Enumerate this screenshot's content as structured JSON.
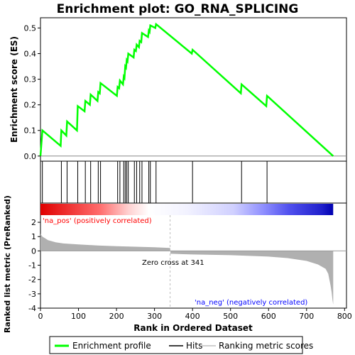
{
  "title": "Enrichment plot: GO_RNA_SPLICING",
  "colors": {
    "es_line": "#00ff00",
    "hits": "#000000",
    "metric_fill": "#b0b0b0",
    "pos_label": "#ff0000",
    "neg_label": "#0000ff",
    "zero_cross_line": "#bbbbbb"
  },
  "chart_data": [
    {
      "panel": "enrichment",
      "type": "line",
      "ylabel": "Enrichment score (ES)",
      "ylim": [
        -0.02,
        0.54
      ],
      "yticks": [
        0.0,
        0.1,
        0.2,
        0.3,
        0.4,
        0.5
      ],
      "ytick_labels": [
        "0.0",
        "0.1",
        "0.2",
        "0.3",
        "0.4",
        "0.5"
      ],
      "xlim": [
        0,
        805
      ],
      "series": [
        {
          "name": "Enrichment profile",
          "x": [
            0,
            5,
            53,
            55,
            68,
            70,
            96,
            98,
            116,
            118,
            130,
            132,
            150,
            152,
            156,
            158,
            201,
            203,
            207,
            209,
            217,
            219,
            221,
            223,
            225,
            227,
            229,
            231,
            245,
            247,
            251,
            253,
            259,
            261,
            265,
            267,
            283,
            285,
            287,
            289,
            302,
            304,
            398,
            400,
            527,
            529,
            594,
            596,
            770
          ],
          "y": [
            0.0,
            0.1,
            0.04,
            0.1,
            0.08,
            0.135,
            0.1,
            0.195,
            0.175,
            0.215,
            0.2,
            0.24,
            0.215,
            0.25,
            0.245,
            0.285,
            0.235,
            0.27,
            0.265,
            0.295,
            0.28,
            0.31,
            0.305,
            0.35,
            0.345,
            0.375,
            0.37,
            0.4,
            0.385,
            0.415,
            0.41,
            0.435,
            0.425,
            0.45,
            0.445,
            0.48,
            0.465,
            0.49,
            0.485,
            0.51,
            0.5,
            0.515,
            0.4,
            0.415,
            0.245,
            0.28,
            0.195,
            0.235,
            0.0
          ]
        }
      ]
    },
    {
      "panel": "hits",
      "type": "scatter",
      "series": [
        {
          "name": "Hits",
          "x": [
            5,
            55,
            70,
            98,
            118,
            132,
            152,
            158,
            203,
            209,
            219,
            223,
            227,
            231,
            247,
            253,
            261,
            267,
            285,
            289,
            304,
            400,
            529,
            596
          ]
        }
      ]
    },
    {
      "panel": "ranked_metric",
      "type": "area",
      "xlabel": "Rank in Ordered Dataset",
      "ylabel": "Ranked list metric (PreRanked)",
      "ylim": [
        -4,
        2.5
      ],
      "yticks": [
        2,
        1,
        0,
        -1,
        -2,
        -3,
        -4
      ],
      "ytick_labels": [
        "2",
        "1",
        "0",
        "-1",
        "-2",
        "-3",
        "-4"
      ],
      "xticks": [
        0,
        100,
        200,
        300,
        400,
        500,
        600,
        700,
        800
      ],
      "xtick_labels": [
        "0",
        "100",
        "200",
        "300",
        "400",
        "500",
        "600",
        "700",
        "800"
      ],
      "series": [
        {
          "name": "Ranking metric scores",
          "x": [
            0,
            5,
            20,
            40,
            60,
            100,
            150,
            200,
            250,
            300,
            341,
            342,
            400,
            500,
            600,
            650,
            700,
            730,
            750,
            757,
            760,
            763,
            766,
            768,
            770
          ],
          "y": [
            1.2,
            1.0,
            0.75,
            0.6,
            0.52,
            0.45,
            0.38,
            0.33,
            0.29,
            0.25,
            0.21,
            -0.2,
            -0.25,
            -0.3,
            -0.4,
            -0.5,
            -0.7,
            -0.95,
            -1.25,
            -1.6,
            -2.0,
            -2.4,
            -2.9,
            -3.4,
            -3.75
          ]
        }
      ]
    }
  ],
  "annotations": {
    "pos_label": "'na_pos' (positively correlated)",
    "neg_label": "'na_neg' (negatively correlated)",
    "zero_cross": "Zero cross at 341",
    "zero_cross_rank": 341
  },
  "legend": {
    "items": [
      "Enrichment profile",
      "Hits",
      "Ranking metric scores"
    ]
  }
}
